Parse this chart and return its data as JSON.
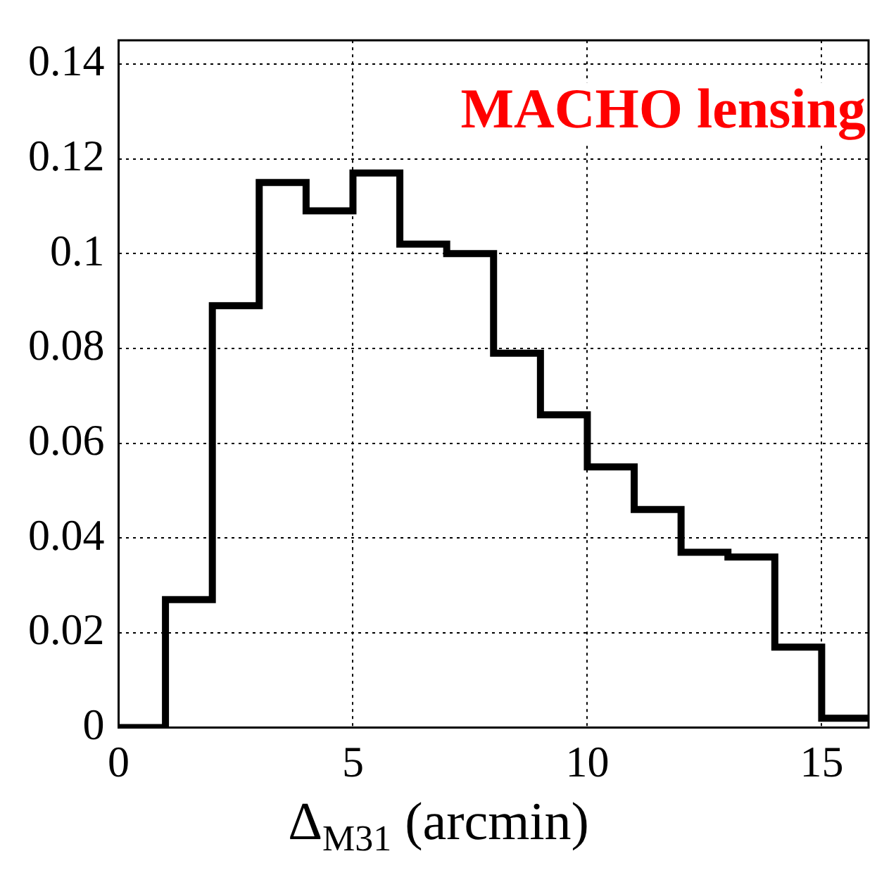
{
  "chart_data": {
    "type": "histogram",
    "xlabel": "Δ$_{M31}$ (arcmin)",
    "annotations": [
      "MACHO lensing"
    ],
    "bins": [
      0,
      1,
      2,
      3,
      4,
      5,
      6,
      7,
      8,
      9,
      10,
      11,
      12,
      13,
      14,
      15,
      16
    ],
    "values": [
      0,
      0.027,
      0.089,
      0.115,
      0.109,
      0.117,
      0.102,
      0.1,
      0.079,
      0.066,
      0.055,
      0.046,
      0.037,
      0.036,
      0.017,
      0.002
    ],
    "color": "#000000",
    "xlim": [
      0,
      16
    ],
    "xticks": [
      0,
      5,
      10,
      15
    ],
    "ylim": [
      0,
      0.145
    ],
    "yticks": [
      0,
      0.02,
      0.04,
      0.06,
      0.08,
      0.1,
      0.12,
      0.14
    ],
    "grid": true,
    "legend": false
  }
}
